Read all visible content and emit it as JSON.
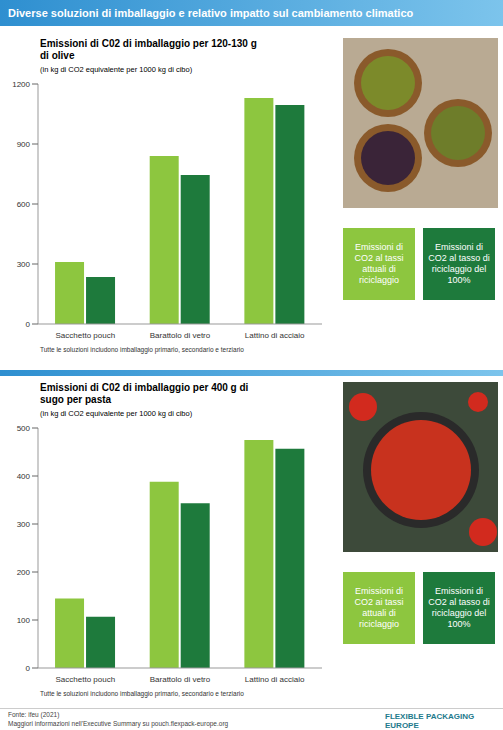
{
  "title": "Diverse soluzioni di imballaggio e relativo impatto sul cambiamento climatico",
  "chart_data": [
    {
      "type": "bar",
      "title": "Emissioni di C02 di imballaggio per 120-130 g di olive",
      "subtitle": "(in kg di CO2 equivalente per 1000 kg di cibo)",
      "annotation": "Tutte le soluzioni includono imballaggio primario, secondario e terziario",
      "categories": [
        "Sacchetto pouch",
        "Barattolo di vetro",
        "Lattino di acciaio"
      ],
      "series": [
        {
          "name": "Emissioni di CO2 al tassi attuali di riciclaggio",
          "color": "#8dc63f",
          "values": [
            310,
            840,
            1130
          ]
        },
        {
          "name": "Emissioni di CO2 al tasso di riciclaggio del 100%",
          "color": "#1e7a3c",
          "values": [
            235,
            745,
            1095
          ]
        }
      ],
      "ylim": [
        0,
        1200
      ],
      "yticks": [
        0,
        300,
        600,
        900,
        1200
      ],
      "grid": false
    },
    {
      "type": "bar",
      "title": "Emissioni di C02 di imballaggio per 400 g di sugo per pasta",
      "subtitle": "(in kg di CO2 equivalente per 1000 kg di cibo)",
      "annotation": "Tutte le soluzioni includono imballaggio primario, secondario e terziario",
      "categories": [
        "Sacchetto pouch",
        "Barattolo di vetro",
        "Lattino di acciaio"
      ],
      "series": [
        {
          "name": "Emissioni di CO2 ai tassi attuali di riciclaggio",
          "color": "#8dc63f",
          "values": [
            145,
            388,
            475
          ]
        },
        {
          "name": "Emissioni di CO2 al tasso di riciclaggio del 100%",
          "color": "#1e7a3c",
          "values": [
            107,
            343,
            457
          ]
        }
      ],
      "ylim": [
        0,
        500
      ],
      "yticks": [
        0,
        100,
        200,
        300,
        400,
        500
      ],
      "grid": false
    }
  ],
  "footer": {
    "source": "Fonte: ifeu (2021)",
    "more_info": "Maggiori informazioni nell'Executive Summary su pouch.flexpack-europe.org",
    "logo": "FLEXIBLE PACKAGING EUROPE"
  }
}
